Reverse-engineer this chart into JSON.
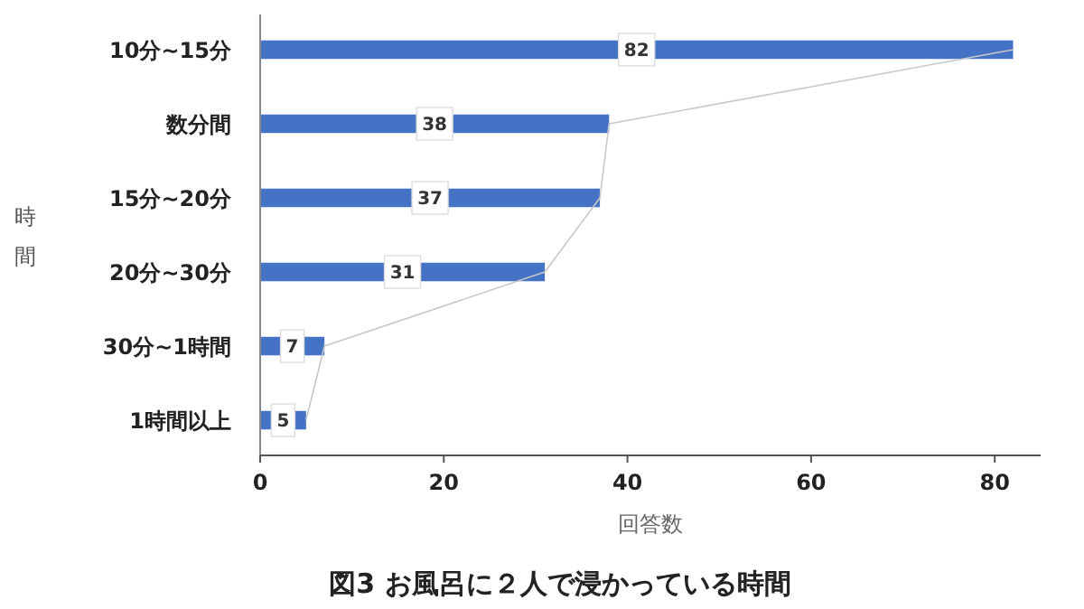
{
  "chart_data": {
    "type": "bar",
    "orientation": "horizontal",
    "title": "図3 お風呂に２人で浸かっている時間",
    "xlabel": "回答数",
    "ylabel": "時間",
    "categories": [
      "10分~15分",
      "数分間",
      "15分~20分",
      "20分~30分",
      "30分~1時間",
      "1時間以上"
    ],
    "series": [
      {
        "color": "#4472c4",
        "values": [
          82,
          38,
          37,
          31,
          7,
          5
        ],
        "value_labels": [
          "82",
          "38",
          "37",
          "31",
          "7",
          "5"
        ]
      },
      {
        "type": "line",
        "color": "#c8c8c8",
        "values": [
          82,
          38,
          37,
          31,
          7,
          5
        ]
      }
    ],
    "xlim": [
      0,
      85
    ],
    "xticks": [
      0,
      20,
      40,
      60,
      80
    ],
    "grid": false
  }
}
